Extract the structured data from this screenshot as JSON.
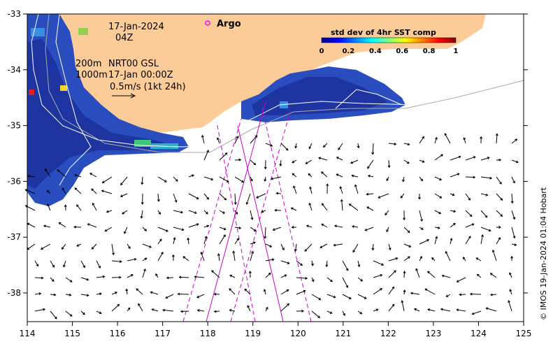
{
  "map": {
    "date": "17-Jan-2024",
    "hour": "04Z",
    "argo_label": "Argo",
    "depth_200": "200m",
    "depth_1000": "1000m",
    "nrt_label": "NRT00 GSL",
    "nrt_time": "17-Jan 00:00Z",
    "scale_label": "0.5m/s (1kt 24h)",
    "colorbar_title": "std dev of 4hr SST comp",
    "colorbar_ticks": [
      "0",
      "0.2",
      "0.4",
      "0.6",
      "0.8",
      "1"
    ],
    "credit": "© IMOS 19-Jan-2024 01:04 Hobart",
    "x_ticks": [
      "114",
      "115",
      "116",
      "117",
      "118",
      "119",
      "120",
      "121",
      "122",
      "123",
      "124",
      "125"
    ],
    "y_ticks": [
      "-33",
      "-34",
      "-35",
      "-36",
      "-37",
      "-38"
    ],
    "colors": {
      "land": "#fccc98",
      "ocean": "#ffffff",
      "tracks": "#cc00cc",
      "isobath": "#999999",
      "argo": "#ff00ff"
    }
  }
}
